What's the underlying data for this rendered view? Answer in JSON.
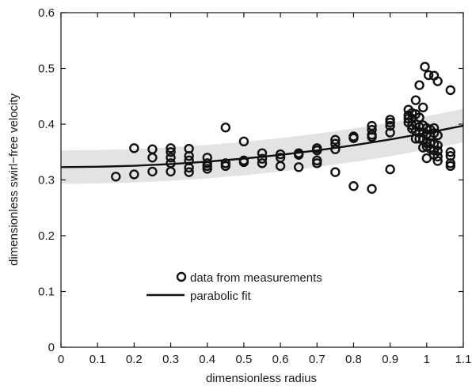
{
  "chart_data": {
    "type": "scatter",
    "title": "",
    "xlabel": "dimensionless radius",
    "ylabel": "dimensionless swirl−free velocity",
    "xlim": [
      0,
      1.1
    ],
    "ylim": [
      0,
      0.6
    ],
    "x_ticks": [
      0,
      0.1,
      0.2,
      0.3,
      0.4,
      0.5,
      0.6,
      0.7,
      0.8,
      0.9,
      1,
      1.1
    ],
    "x_tick_labels": [
      "0",
      "0.1",
      "0.2",
      "0.3",
      "0.4",
      "0.5",
      "0.6",
      "0.7",
      "0.8",
      "0.9",
      "1",
      "1.1"
    ],
    "y_ticks": [
      0,
      0.1,
      0.2,
      0.3,
      0.4,
      0.5,
      0.6
    ],
    "y_tick_labels": [
      "0",
      "0.1",
      "0.2",
      "0.3",
      "0.4",
      "0.5",
      "0.6"
    ],
    "grid": false,
    "legend": {
      "placement": "lower-center",
      "entries": [
        {
          "label": "data from measurements",
          "marker": "open-circle"
        },
        {
          "label": "parabolic fit",
          "marker": "line"
        }
      ]
    },
    "series": [
      {
        "name": "data from measurements",
        "kind": "scatter",
        "marker": "open-circle",
        "color": "#111111",
        "points": [
          [
            0.15,
            0.306
          ],
          [
            0.2,
            0.357
          ],
          [
            0.2,
            0.31
          ],
          [
            0.25,
            0.355
          ],
          [
            0.25,
            0.34
          ],
          [
            0.25,
            0.315
          ],
          [
            0.3,
            0.357
          ],
          [
            0.3,
            0.35
          ],
          [
            0.3,
            0.34
          ],
          [
            0.3,
            0.33
          ],
          [
            0.3,
            0.315
          ],
          [
            0.35,
            0.356
          ],
          [
            0.35,
            0.343
          ],
          [
            0.35,
            0.335
          ],
          [
            0.35,
            0.322
          ],
          [
            0.35,
            0.314
          ],
          [
            0.4,
            0.34
          ],
          [
            0.4,
            0.33
          ],
          [
            0.4,
            0.325
          ],
          [
            0.4,
            0.32
          ],
          [
            0.45,
            0.394
          ],
          [
            0.45,
            0.33
          ],
          [
            0.45,
            0.325
          ],
          [
            0.5,
            0.369
          ],
          [
            0.5,
            0.335
          ],
          [
            0.5,
            0.332
          ],
          [
            0.55,
            0.348
          ],
          [
            0.55,
            0.338
          ],
          [
            0.55,
            0.33
          ],
          [
            0.6,
            0.346
          ],
          [
            0.6,
            0.34
          ],
          [
            0.6,
            0.325
          ],
          [
            0.65,
            0.348
          ],
          [
            0.65,
            0.345
          ],
          [
            0.65,
            0.323
          ],
          [
            0.7,
            0.357
          ],
          [
            0.7,
            0.353
          ],
          [
            0.7,
            0.335
          ],
          [
            0.7,
            0.33
          ],
          [
            0.75,
            0.372
          ],
          [
            0.75,
            0.365
          ],
          [
            0.75,
            0.355
          ],
          [
            0.75,
            0.314
          ],
          [
            0.8,
            0.378
          ],
          [
            0.8,
            0.375
          ],
          [
            0.8,
            0.289
          ],
          [
            0.85,
            0.397
          ],
          [
            0.85,
            0.39
          ],
          [
            0.85,
            0.381
          ],
          [
            0.85,
            0.377
          ],
          [
            0.85,
            0.284
          ],
          [
            0.9,
            0.408
          ],
          [
            0.9,
            0.403
          ],
          [
            0.9,
            0.397
          ],
          [
            0.9,
            0.385
          ],
          [
            0.9,
            0.319
          ],
          [
            0.95,
            0.426
          ],
          [
            0.95,
            0.416
          ],
          [
            0.95,
            0.41
          ],
          [
            0.95,
            0.403
          ],
          [
            0.96,
            0.42
          ],
          [
            0.96,
            0.41
          ],
          [
            0.96,
            0.398
          ],
          [
            0.96,
            0.392
          ],
          [
            0.97,
            0.443
          ],
          [
            0.97,
            0.418
          ],
          [
            0.97,
            0.4
          ],
          [
            0.97,
            0.388
          ],
          [
            0.97,
            0.374
          ],
          [
            0.98,
            0.47
          ],
          [
            0.98,
            0.412
          ],
          [
            0.98,
            0.395
          ],
          [
            0.98,
            0.385
          ],
          [
            0.98,
            0.374
          ],
          [
            0.99,
            0.43
          ],
          [
            0.99,
            0.398
          ],
          [
            0.99,
            0.373
          ],
          [
            0.99,
            0.358
          ],
          [
            0.995,
            0.503
          ],
          [
            1.0,
            0.393
          ],
          [
            1.0,
            0.382
          ],
          [
            1.0,
            0.366
          ],
          [
            1.0,
            0.36
          ],
          [
            1.0,
            0.339
          ],
          [
            1.005,
            0.488
          ],
          [
            1.01,
            0.39
          ],
          [
            1.01,
            0.378
          ],
          [
            1.01,
            0.366
          ],
          [
            1.01,
            0.356
          ],
          [
            1.02,
            0.487
          ],
          [
            1.02,
            0.393
          ],
          [
            1.02,
            0.384
          ],
          [
            1.02,
            0.365
          ],
          [
            1.02,
            0.353
          ],
          [
            1.02,
            0.345
          ],
          [
            1.03,
            0.477
          ],
          [
            1.03,
            0.38
          ],
          [
            1.03,
            0.362
          ],
          [
            1.03,
            0.352
          ],
          [
            1.03,
            0.342
          ],
          [
            1.03,
            0.334
          ],
          [
            1.065,
            0.461
          ],
          [
            1.065,
            0.35
          ],
          [
            1.065,
            0.343
          ],
          [
            1.065,
            0.33
          ],
          [
            1.065,
            0.325
          ]
        ]
      },
      {
        "name": "parabolic fit",
        "kind": "line",
        "color": "#111111",
        "x": [
          0,
          0.1,
          0.2,
          0.3,
          0.4,
          0.5,
          0.6,
          0.7,
          0.8,
          0.9,
          1.0,
          1.1
        ],
        "y": [
          0.323,
          0.3236,
          0.3254,
          0.3285,
          0.3328,
          0.3383,
          0.345,
          0.353,
          0.3622,
          0.3726,
          0.3843,
          0.3973
        ]
      },
      {
        "name": "",
        "kind": "band",
        "color": "#e3e3e3",
        "x": [
          0,
          0.1,
          0.2,
          0.3,
          0.4,
          0.5,
          0.6,
          0.7,
          0.8,
          0.9,
          1.0,
          1.1
        ],
        "y_upper": [
          0.353,
          0.3536,
          0.3554,
          0.3585,
          0.3628,
          0.3683,
          0.375,
          0.383,
          0.3922,
          0.4026,
          0.4143,
          0.4273
        ],
        "y_lower": [
          0.293,
          0.2936,
          0.2954,
          0.2985,
          0.3028,
          0.3083,
          0.315,
          0.323,
          0.3322,
          0.3426,
          0.3543,
          0.3673
        ]
      }
    ]
  }
}
